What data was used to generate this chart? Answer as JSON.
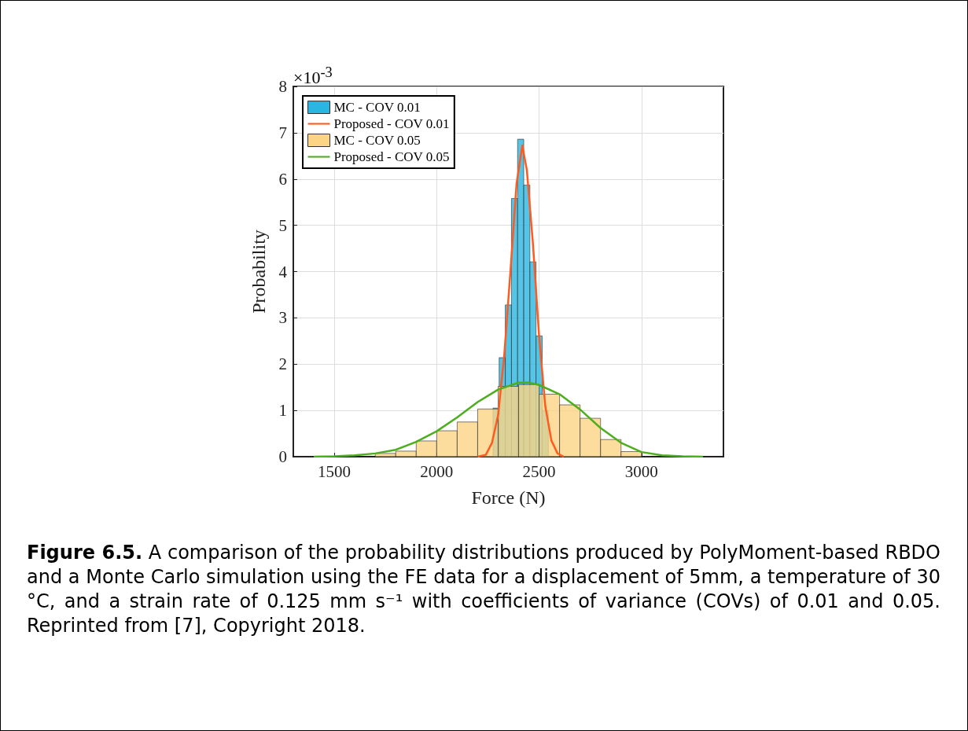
{
  "chart_data": {
    "type": "histogram",
    "xlabel": "Force (N)",
    "ylabel": "Probability",
    "annotations": [
      "×10$^{-3}$",
      "Figure 6.5.",
      "A comparison of the probability distributions produced by PolyMoment-based RBDO and a Monte Carlo simulation using the FE data for a displacement of 5mm, a temperature of 30 °C, and a strain rate of 0.125 mm s⁻¹ with coefficients of variance (COVs) of 0.01 and 0.05. Reprinted from [7], Copyright 2018."
    ],
    "xlim": [
      1300,
      3400
    ],
    "xticks": [
      1500,
      2000,
      2500,
      3000
    ],
    "ylim": [
      0,
      8
    ],
    "yticks": [
      0,
      1,
      2,
      3,
      4,
      5,
      6,
      7,
      8
    ],
    "grid": true,
    "legend": "top left",
    "series": [
      {
        "name": "MC - COV 0.01",
        "color": "#29b6e0",
        "bins": [
          2245,
          2275,
          2305,
          2335,
          2365,
          2395,
          2425,
          2455,
          2485,
          2515,
          2545,
          2575
        ],
        "values": [
          null,
          1.05,
          2.14,
          3.28,
          5.58,
          6.86,
          5.87,
          4.21,
          2.61,
          1.0,
          null
        ]
      },
      {
        "name": "Proposed - COV 0.01",
        "type": "line",
        "color": "#ff5a1f",
        "x": [
          2200,
          2240,
          2270,
          2300,
          2330,
          2360,
          2390,
          2418,
          2440,
          2470,
          2500,
          2530,
          2560,
          2590,
          2620
        ],
        "values": [
          0,
          0.04,
          0.3,
          0.9,
          2.2,
          4.0,
          5.9,
          6.72,
          6.2,
          4.6,
          2.6,
          1.1,
          0.35,
          0.07,
          0
        ]
      },
      {
        "name": "MC - COV 0.05",
        "color": "#fdd485",
        "bins": [
          1700,
          1800,
          1900,
          2000,
          2100,
          2200,
          2300,
          2400,
          2500,
          2600,
          2700,
          2800,
          2900,
          3000
        ],
        "values": [
          0.07,
          0.12,
          0.34,
          0.56,
          0.75,
          1.03,
          1.52,
          1.56,
          1.35,
          1.12,
          0.83,
          0.37,
          0.11
        ]
      },
      {
        "name": "Proposed - COV 0.05",
        "type": "line",
        "color": "#4dae1e",
        "x": [
          1400,
          1500,
          1600,
          1700,
          1800,
          1900,
          2000,
          2100,
          2200,
          2300,
          2400,
          2450,
          2500,
          2600,
          2700,
          2800,
          2900,
          3000,
          3100,
          3200,
          3300
        ],
        "values": [
          0,
          0.01,
          0.03,
          0.07,
          0.15,
          0.32,
          0.55,
          0.85,
          1.18,
          1.45,
          1.6,
          1.6,
          1.55,
          1.35,
          1.02,
          0.62,
          0.3,
          0.1,
          0.03,
          0.01,
          0
        ]
      }
    ]
  }
}
